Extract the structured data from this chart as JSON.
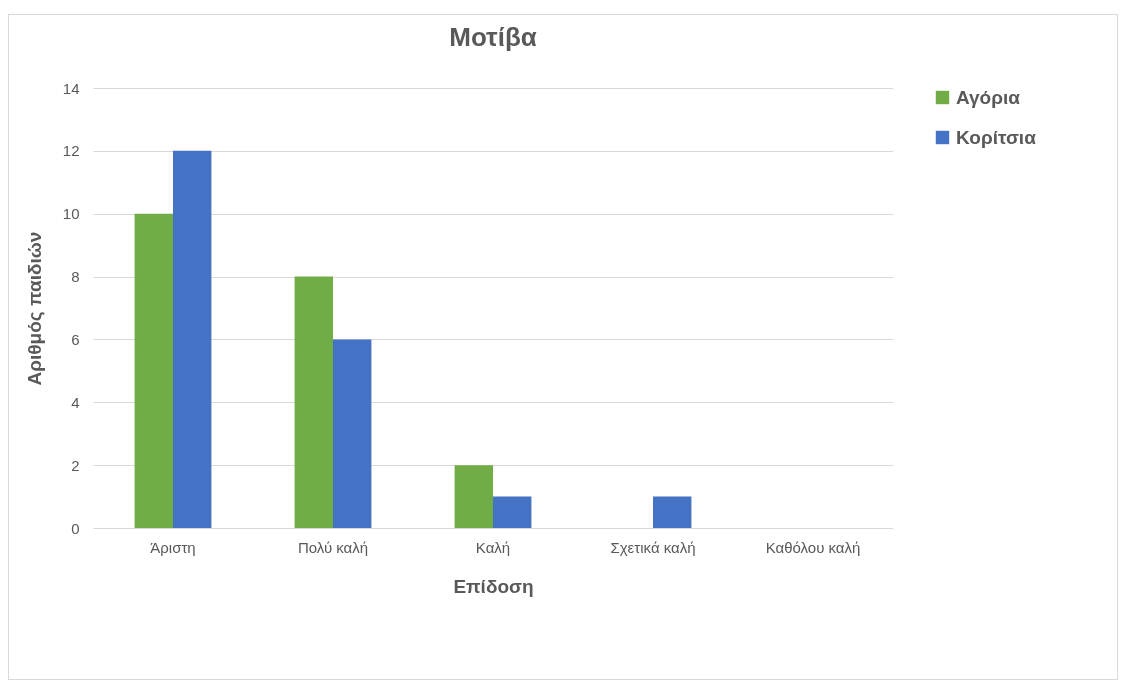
{
  "chart_data": {
    "type": "bar",
    "title": "Μοτίβα",
    "xlabel": "Επίδοση",
    "ylabel": "Αριθμός παιδιών",
    "categories": [
      "Άριστη",
      "Πολύ καλή",
      "Καλή",
      "Σχετικά καλή",
      "Καθόλου καλή"
    ],
    "series": [
      {
        "name": "Αγόρια",
        "color": "#70ad47",
        "values": [
          10,
          8,
          2,
          0,
          0
        ]
      },
      {
        "name": "Κορίτσια",
        "color": "#4472c4",
        "values": [
          12,
          6,
          1,
          1,
          0
        ]
      }
    ],
    "ylim": [
      0,
      14
    ],
    "yticks": [
      0,
      2,
      4,
      6,
      8,
      10,
      12,
      14
    ],
    "grid": "y",
    "legend": "right"
  }
}
